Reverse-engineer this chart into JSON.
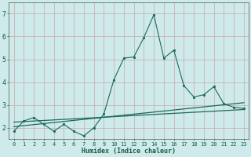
{
  "xlabel": "Humidex (Indice chaleur)",
  "bg_color": "#ceeaea",
  "grid_color": "#c8a8a8",
  "line_color": "#1a6b5a",
  "xlim": [
    -0.5,
    23.5
  ],
  "ylim": [
    1.5,
    7.5
  ],
  "yticks": [
    2,
    3,
    4,
    5,
    6,
    7
  ],
  "xticks": [
    0,
    1,
    2,
    3,
    4,
    5,
    6,
    7,
    8,
    9,
    10,
    11,
    12,
    13,
    14,
    15,
    16,
    17,
    18,
    19,
    20,
    21,
    22,
    23
  ],
  "main_x": [
    0,
    1,
    2,
    3,
    4,
    5,
    6,
    7,
    8,
    9,
    10,
    11,
    12,
    13,
    14,
    15,
    16,
    17,
    18,
    19,
    20,
    21,
    22,
    23
  ],
  "main_y": [
    1.85,
    2.3,
    2.45,
    2.15,
    1.85,
    2.15,
    1.85,
    1.65,
    2.0,
    2.6,
    4.1,
    5.05,
    5.1,
    5.95,
    6.95,
    5.05,
    5.4,
    3.85,
    3.35,
    3.45,
    3.8,
    3.05,
    2.9,
    2.85
  ],
  "trend1_x": [
    0,
    23
  ],
  "trend1_y": [
    2.05,
    3.1
  ],
  "trend2_x": [
    0,
    23
  ],
  "trend2_y": [
    2.25,
    2.8
  ]
}
